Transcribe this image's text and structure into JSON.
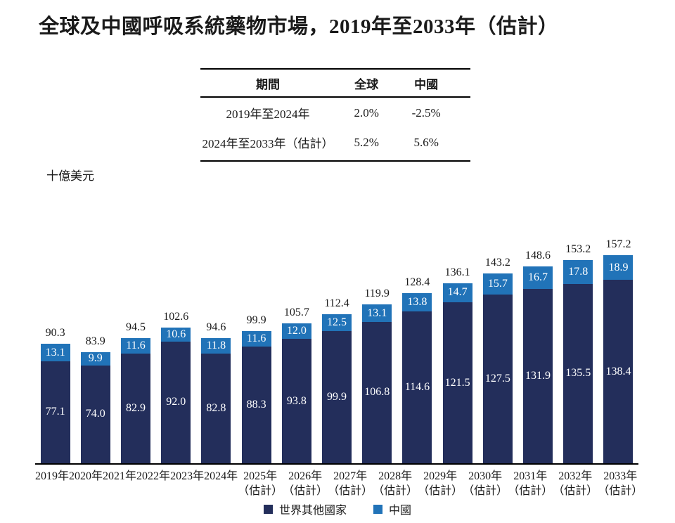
{
  "page_title": "全球及中國呼吸系統藥物市場，2019年至2033年（估計）",
  "unit_label": "十億美元",
  "growth_table": {
    "headers": [
      "期間",
      "全球",
      "中國"
    ],
    "rows": [
      [
        "2019年至2024年",
        "2.0%",
        "-2.5%"
      ],
      [
        "2024年至2033年（估計）",
        "5.2%",
        "5.6%"
      ]
    ]
  },
  "colors": {
    "rest_of_world": "#232e5b",
    "china": "#2173b8",
    "axis": "#000000",
    "text": "#1a1a1a",
    "bar_value_text": "#ffffff"
  },
  "chart_data": {
    "type": "bar",
    "stacked": true,
    "title": "全球及中國呼吸系統藥物市場，2019年至2033年（估計）",
    "ylabel": "十億美元",
    "ylim": [
      0,
      160
    ],
    "grid": false,
    "legend_position": "bottom",
    "categories": [
      "2019年",
      "2020年",
      "2021年",
      "2022年",
      "2023年",
      "2024年",
      "2025年",
      "2026年",
      "2027年",
      "2028年",
      "2029年",
      "2030年",
      "2031年",
      "2032年",
      "2033年"
    ],
    "estimate_suffix": "（估計）",
    "estimated_flags": [
      false,
      false,
      false,
      false,
      false,
      false,
      true,
      true,
      true,
      true,
      true,
      true,
      true,
      true,
      true
    ],
    "series": [
      {
        "name": "世界其他國家",
        "color": "#232e5b",
        "values": [
          77.1,
          74.0,
          82.9,
          92.0,
          82.8,
          88.3,
          93.8,
          99.9,
          106.8,
          114.6,
          121.5,
          127.5,
          131.9,
          135.5,
          138.4
        ]
      },
      {
        "name": "中國",
        "color": "#2173b8",
        "values": [
          13.1,
          9.9,
          11.6,
          10.6,
          11.8,
          11.6,
          12.0,
          12.5,
          13.1,
          13.8,
          14.7,
          15.7,
          16.7,
          17.8,
          18.9
        ]
      }
    ],
    "totals": [
      90.3,
      83.9,
      94.5,
      102.6,
      94.6,
      99.9,
      105.7,
      112.4,
      119.9,
      128.4,
      136.1,
      143.2,
      148.6,
      153.2,
      157.2
    ]
  },
  "legend": {
    "items": [
      {
        "label": "世界其他國家",
        "color": "#232e5b"
      },
      {
        "label": "中國",
        "color": "#2173b8"
      }
    ]
  }
}
